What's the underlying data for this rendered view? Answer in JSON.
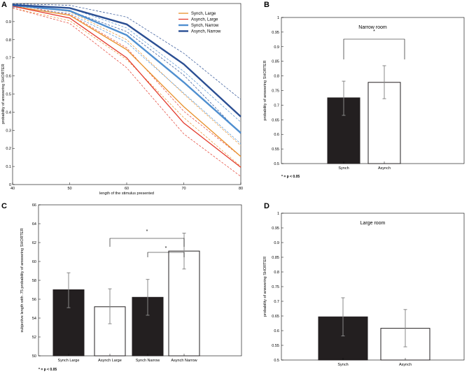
{
  "panels": {
    "A": "A",
    "B": "B",
    "C": "C",
    "D": "D"
  },
  "chart_data": [
    {
      "id": "A",
      "type": "line",
      "title": "",
      "xlabel": "length of the stimulus presented",
      "ylabel": "probability of answering SHORTER",
      "x": [
        40,
        50,
        60,
        70,
        80
      ],
      "xlim": [
        40,
        80
      ],
      "ylim": [
        0,
        1
      ],
      "xticks": [
        "40",
        "50",
        "60",
        "70",
        "80"
      ],
      "yticks": [
        "0",
        "0.1",
        "0.2",
        "0.3",
        "0.4",
        "0.5",
        "0.6",
        "0.7",
        "0.8",
        "0.9"
      ],
      "legend_position": "top-right",
      "series": [
        {
          "name": "Synch,  Large",
          "color": "#e8902a",
          "width": 1.3,
          "values": [
            0.985,
            0.935,
            0.745,
            0.43,
            0.155
          ],
          "ci_upper": [
            0.995,
            0.955,
            0.8,
            0.5,
            0.215
          ],
          "ci_lower": [
            0.975,
            0.905,
            0.69,
            0.37,
            0.1
          ]
        },
        {
          "name": "Asynch, Large",
          "color": "#e33a2c",
          "width": 1.3,
          "values": [
            0.985,
            0.92,
            0.7,
            0.34,
            0.095
          ],
          "ci_upper": [
            0.995,
            0.94,
            0.755,
            0.405,
            0.155
          ],
          "ci_lower": [
            0.975,
            0.89,
            0.645,
            0.28,
            0.045
          ]
        },
        {
          "name": "Synch,  Narrow",
          "color": "#4f8fd0",
          "width": 2.4,
          "values": [
            0.99,
            0.96,
            0.825,
            0.565,
            0.285
          ],
          "ci_upper": [
            0.998,
            0.975,
            0.865,
            0.625,
            0.345
          ],
          "ci_lower": [
            0.98,
            0.945,
            0.785,
            0.505,
            0.225
          ]
        },
        {
          "name": "Asynch, Narrow",
          "color": "#2b4f93",
          "width": 2.4,
          "values": [
            0.992,
            0.975,
            0.885,
            0.665,
            0.375
          ],
          "ci_upper": [
            0.999,
            0.99,
            0.925,
            0.725,
            0.47
          ],
          "ci_lower": [
            0.985,
            0.96,
            0.845,
            0.605,
            0.28
          ]
        }
      ]
    },
    {
      "id": "B",
      "type": "bar",
      "title": "Narrow room",
      "xlabel": "",
      "ylabel": "probability of answering SHORTER",
      "categories": [
        "Synch",
        "Asynch"
      ],
      "values": [
        0.725,
        0.778
      ],
      "err_low": [
        0.665,
        0.722
      ],
      "err_high": [
        0.782,
        0.835
      ],
      "fills": [
        "#231f20",
        "#ffffff"
      ],
      "ylim": [
        0.5,
        1
      ],
      "yticks": [
        "0.5",
        "0.55",
        "0.6",
        "0.65",
        "0.7",
        "0.75",
        "0.8",
        "0.85",
        "0.9",
        "0.95",
        "1"
      ],
      "significance": "*",
      "footnote": "* = p < 0.05"
    },
    {
      "id": "C",
      "type": "bar",
      "title": "",
      "xlabel": "",
      "ylabel": "subjective length with .75 probability of answering SHORTER",
      "categories": [
        "Synch  Large",
        "Asynch  Large",
        "Synch  Narrow",
        "Asynch  Narrow"
      ],
      "values": [
        57.0,
        55.2,
        56.2,
        61.1
      ],
      "err_low": [
        55.1,
        53.4,
        54.3,
        59.2
      ],
      "err_high": [
        58.8,
        57.1,
        58.1,
        63.0
      ],
      "fills": [
        "#231f20",
        "#ffffff",
        "#231f20",
        "#ffffff"
      ],
      "ylim": [
        50,
        66
      ],
      "yticks": [
        "50",
        "52",
        "54",
        "56",
        "58",
        "60",
        "62",
        "64",
        "66"
      ],
      "significance": [
        "*",
        "*"
      ],
      "footnote": "* = p < 0.05"
    },
    {
      "id": "D",
      "type": "bar",
      "title": "Large room",
      "xlabel": "",
      "ylabel": "probability of answering SHORTER",
      "categories": [
        "Synch",
        "Asynch"
      ],
      "values": [
        0.647,
        0.608
      ],
      "err_low": [
        0.582,
        0.545
      ],
      "err_high": [
        0.712,
        0.672
      ],
      "fills": [
        "#231f20",
        "#ffffff"
      ],
      "ylim": [
        0.5,
        1
      ],
      "yticks": [
        "0.5",
        "0.55",
        "0.6",
        "0.65",
        "0.7",
        "0.75",
        "0.8",
        "0.85",
        "0.9",
        "0.95",
        "1"
      ]
    }
  ]
}
